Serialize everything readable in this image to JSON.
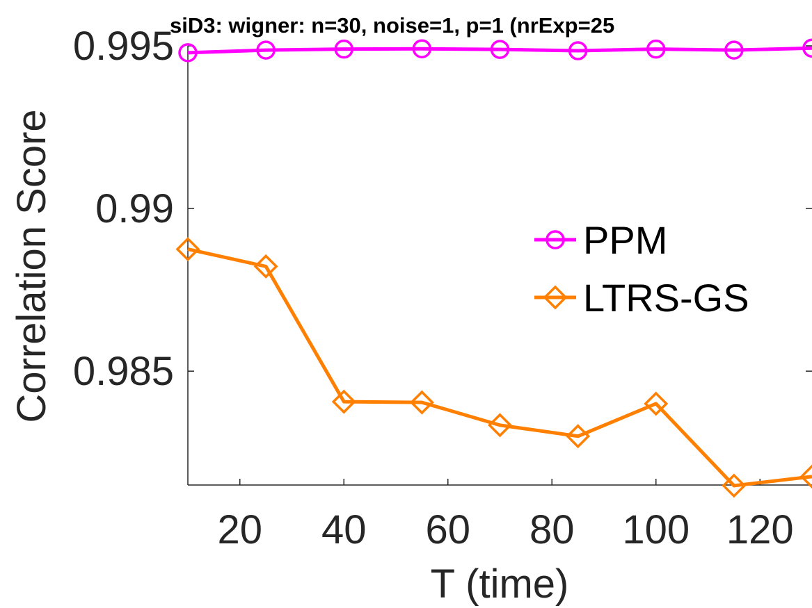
{
  "chart_data": {
    "type": "line",
    "title": "siD3: wigner: n=30, noise=1, p=1 (nrExp=25",
    "xlabel": "T (time)",
    "ylabel": "Correlation Score",
    "xlim": [
      10,
      130
    ],
    "ylim": [
      0.9815,
      0.995
    ],
    "x_ticks": [
      20,
      40,
      60,
      80,
      100,
      120
    ],
    "y_ticks": [
      0.985,
      0.99,
      0.995
    ],
    "y_tick_labels": [
      "0.985",
      "0.99",
      "0.995"
    ],
    "x": [
      10,
      25,
      40,
      55,
      70,
      85,
      100,
      115,
      130
    ],
    "series": [
      {
        "name": "PPM",
        "color": "#ff00ff",
        "marker": "circle",
        "values": [
          0.99479,
          0.99487,
          0.9949,
          0.99491,
          0.99489,
          0.99485,
          0.9949,
          0.99487,
          0.99493
        ]
      },
      {
        "name": "LTRS-GS",
        "color": "#ff8000",
        "marker": "diamond",
        "values": [
          0.98875,
          0.98822,
          0.98406,
          0.98404,
          0.98334,
          0.983,
          0.984,
          0.98148,
          0.98176
        ]
      }
    ],
    "legend_position": "right",
    "grid": false
  }
}
